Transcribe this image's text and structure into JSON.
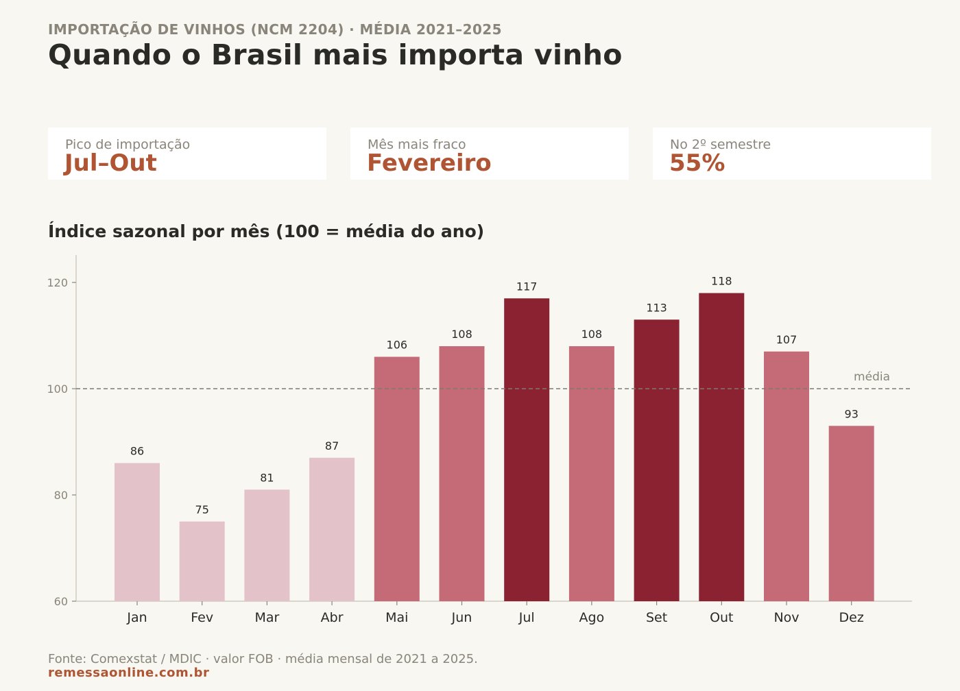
{
  "header": {
    "kicker": "IMPORTAÇÃO DE VINHOS (NCM 2204) · MÉDIA 2021–2025",
    "title": "Quando o Brasil mais importa vinho"
  },
  "kpis": [
    {
      "label": "Pico de importação",
      "value": "Jul–Out"
    },
    {
      "label": "Mês mais fraco",
      "value": "Fevereiro"
    },
    {
      "label": "No 2º semestre",
      "value": "55%"
    }
  ],
  "colors": {
    "low": "#e3c3c9",
    "mid": "#c46b77",
    "high": "#8b2232",
    "accent": "#b05533",
    "axis": "#8a857a"
  },
  "chart_data": {
    "type": "bar",
    "title": "Índice sazonal por mês (100 = média do ano)",
    "categories": [
      "Jan",
      "Fev",
      "Mar",
      "Abr",
      "Mai",
      "Jun",
      "Jul",
      "Ago",
      "Set",
      "Out",
      "Nov",
      "Dez"
    ],
    "values": [
      86,
      75,
      81,
      87,
      106,
      108,
      117,
      108,
      113,
      118,
      107,
      93
    ],
    "tiers": [
      "low",
      "low",
      "low",
      "low",
      "mid",
      "mid",
      "high",
      "mid",
      "high",
      "high",
      "mid",
      "mid"
    ],
    "ylim": [
      60,
      125
    ],
    "yticks": [
      60,
      80,
      100,
      120
    ],
    "reference_line": {
      "value": 100,
      "label": "média"
    },
    "grid": false,
    "xlabel": "",
    "ylabel": ""
  },
  "footer": {
    "source": "Fonte: Comexstat / MDIC · valor FOB · média mensal de 2021 a 2025.",
    "brand": "remessaonline.com.br"
  }
}
